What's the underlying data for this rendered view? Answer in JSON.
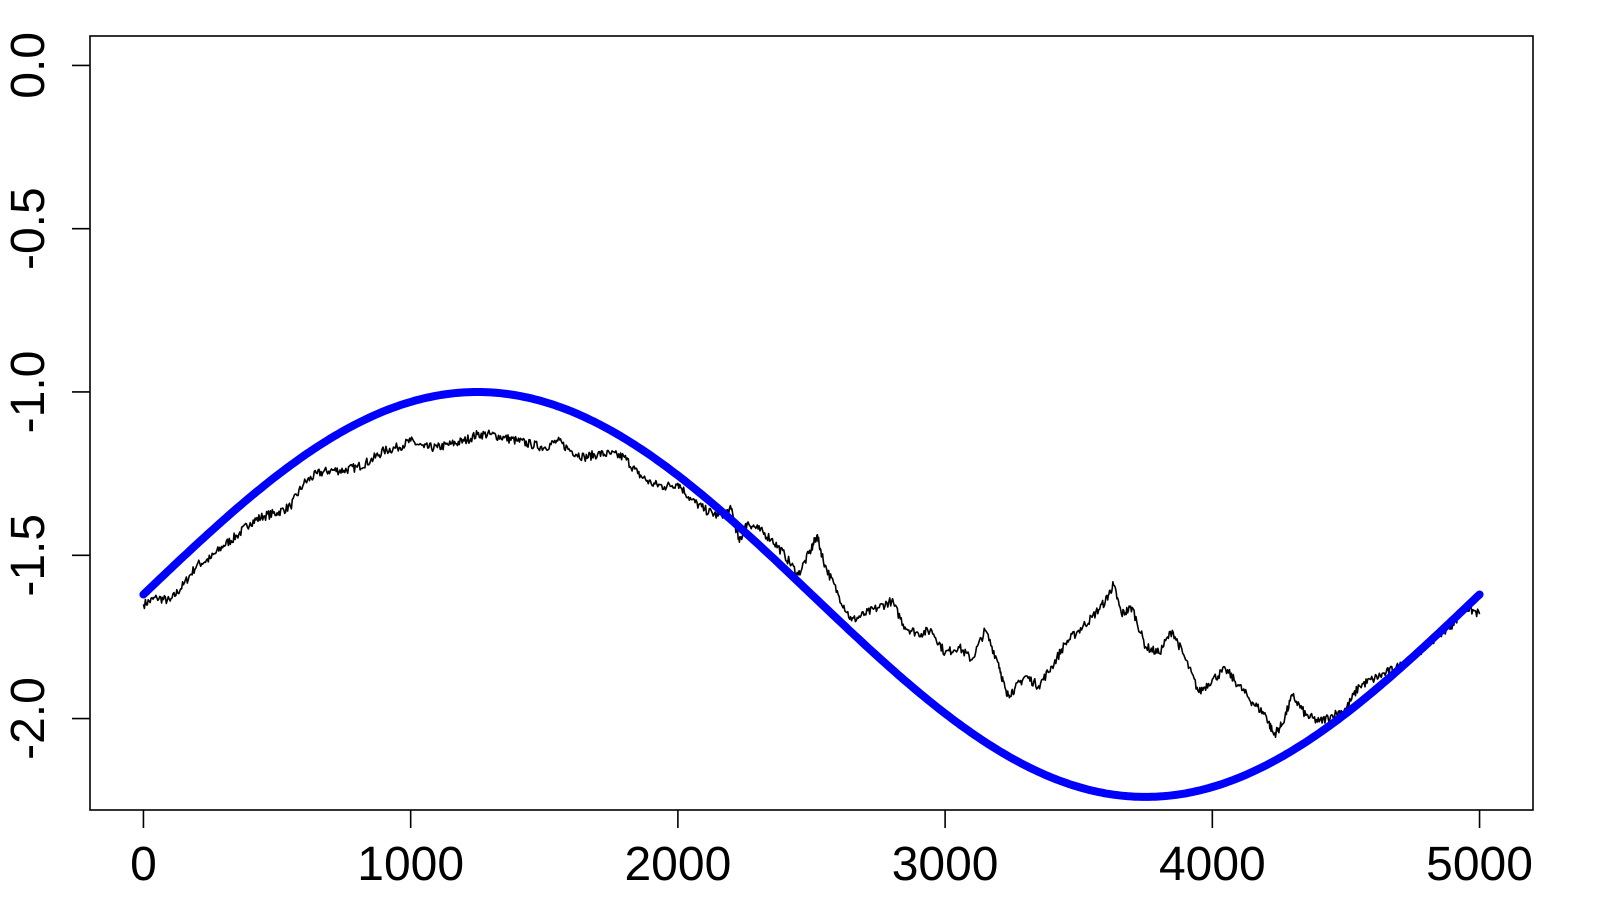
{
  "chart_data": {
    "type": "line",
    "title": "",
    "xlabel": "",
    "ylabel": "",
    "xlim": [
      -200,
      5200
    ],
    "ylim": [
      -2.28,
      0.09
    ],
    "x_ticks": [
      0,
      1000,
      2000,
      3000,
      4000,
      5000
    ],
    "x_tick_labels": [
      "0",
      "1000",
      "2000",
      "3000",
      "4000",
      "5000"
    ],
    "y_ticks": [
      0.0,
      -0.5,
      -1.0,
      -1.5,
      -2.0
    ],
    "y_tick_labels": [
      "0.0",
      "-0.5",
      "-1.0",
      "-1.5",
      "-2.0"
    ],
    "grid": false,
    "legend": "none",
    "series": [
      {
        "style": "thin-black",
        "color": "#000000",
        "anchors": [
          [
            0,
            -1.65
          ],
          [
            50,
            -1.63
          ],
          [
            100,
            -1.64
          ],
          [
            150,
            -1.59
          ],
          [
            200,
            -1.53
          ],
          [
            250,
            -1.51
          ],
          [
            300,
            -1.47
          ],
          [
            350,
            -1.44
          ],
          [
            400,
            -1.4
          ],
          [
            450,
            -1.38
          ],
          [
            500,
            -1.37
          ],
          [
            550,
            -1.35
          ],
          [
            600,
            -1.28
          ],
          [
            650,
            -1.25
          ],
          [
            700,
            -1.24
          ],
          [
            750,
            -1.24
          ],
          [
            800,
            -1.23
          ],
          [
            850,
            -1.21
          ],
          [
            900,
            -1.18
          ],
          [
            950,
            -1.17
          ],
          [
            1000,
            -1.15
          ],
          [
            1050,
            -1.17
          ],
          [
            1100,
            -1.17
          ],
          [
            1150,
            -1.16
          ],
          [
            1200,
            -1.15
          ],
          [
            1250,
            -1.13
          ],
          [
            1300,
            -1.13
          ],
          [
            1350,
            -1.14
          ],
          [
            1400,
            -1.15
          ],
          [
            1450,
            -1.16
          ],
          [
            1500,
            -1.17
          ],
          [
            1550,
            -1.15
          ],
          [
            1600,
            -1.18
          ],
          [
            1650,
            -1.2
          ],
          [
            1700,
            -1.19
          ],
          [
            1750,
            -1.19
          ],
          [
            1800,
            -1.2
          ],
          [
            1850,
            -1.25
          ],
          [
            1900,
            -1.28
          ],
          [
            1950,
            -1.29
          ],
          [
            2000,
            -1.28
          ],
          [
            2050,
            -1.33
          ],
          [
            2100,
            -1.36
          ],
          [
            2150,
            -1.38
          ],
          [
            2200,
            -1.36
          ],
          [
            2230,
            -1.46
          ],
          [
            2260,
            -1.4
          ],
          [
            2300,
            -1.42
          ],
          [
            2350,
            -1.45
          ],
          [
            2400,
            -1.5
          ],
          [
            2450,
            -1.56
          ],
          [
            2500,
            -1.48
          ],
          [
            2520,
            -1.44
          ],
          [
            2550,
            -1.53
          ],
          [
            2600,
            -1.62
          ],
          [
            2650,
            -1.7
          ],
          [
            2700,
            -1.68
          ],
          [
            2750,
            -1.66
          ],
          [
            2800,
            -1.64
          ],
          [
            2850,
            -1.72
          ],
          [
            2900,
            -1.74
          ],
          [
            2950,
            -1.73
          ],
          [
            3000,
            -1.8
          ],
          [
            3050,
            -1.78
          ],
          [
            3100,
            -1.82
          ],
          [
            3150,
            -1.73
          ],
          [
            3200,
            -1.83
          ],
          [
            3230,
            -1.93
          ],
          [
            3260,
            -1.91
          ],
          [
            3300,
            -1.87
          ],
          [
            3350,
            -1.9
          ],
          [
            3400,
            -1.84
          ],
          [
            3450,
            -1.77
          ],
          [
            3500,
            -1.73
          ],
          [
            3550,
            -1.69
          ],
          [
            3600,
            -1.64
          ],
          [
            3630,
            -1.59
          ],
          [
            3660,
            -1.68
          ],
          [
            3700,
            -1.66
          ],
          [
            3750,
            -1.78
          ],
          [
            3800,
            -1.8
          ],
          [
            3850,
            -1.73
          ],
          [
            3900,
            -1.82
          ],
          [
            3950,
            -1.92
          ],
          [
            4000,
            -1.88
          ],
          [
            4050,
            -1.85
          ],
          [
            4100,
            -1.9
          ],
          [
            4150,
            -1.95
          ],
          [
            4200,
            -1.99
          ],
          [
            4230,
            -2.05
          ],
          [
            4260,
            -2.02
          ],
          [
            4300,
            -1.93
          ],
          [
            4350,
            -1.99
          ],
          [
            4400,
            -2.01
          ],
          [
            4450,
            -1.99
          ],
          [
            4500,
            -1.97
          ],
          [
            4550,
            -1.9
          ],
          [
            4600,
            -1.88
          ],
          [
            4650,
            -1.86
          ],
          [
            4700,
            -1.84
          ],
          [
            4750,
            -1.81
          ],
          [
            4800,
            -1.78
          ],
          [
            4850,
            -1.74
          ],
          [
            4900,
            -1.71
          ],
          [
            4950,
            -1.66
          ],
          [
            5000,
            -1.68
          ]
        ]
      },
      {
        "style": "thick-blue",
        "color": "#0000ff",
        "x_start": 0,
        "x_end": 5000,
        "curve": "sine",
        "center": -1.62,
        "amplitude": 0.62,
        "period": 5000,
        "phase": 0
      }
    ]
  }
}
